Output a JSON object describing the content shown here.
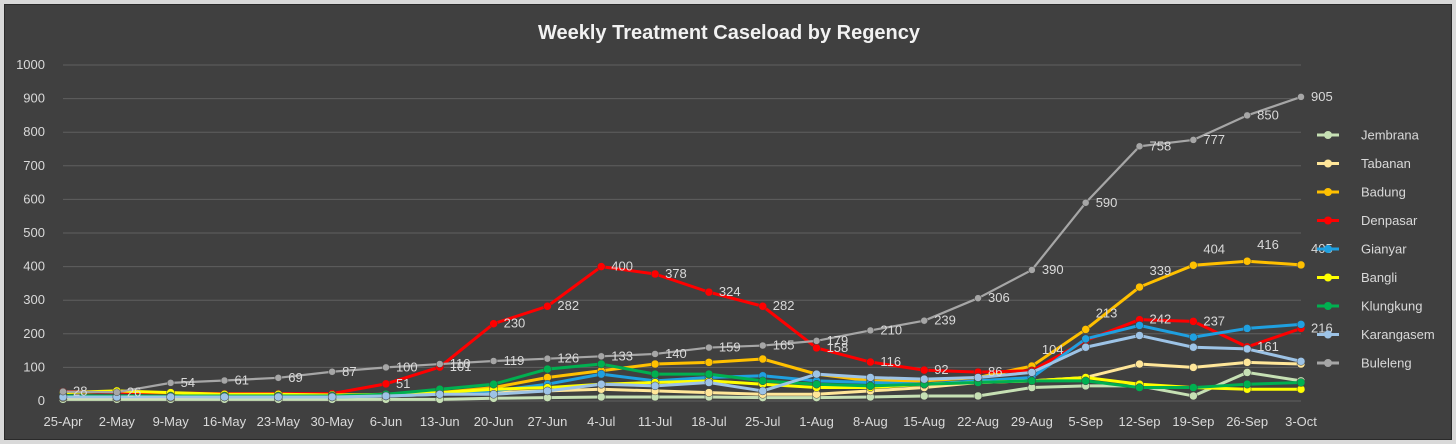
{
  "chart_data": {
    "type": "line",
    "title": "Weekly Treatment Caseload by Regency",
    "xlabel": "",
    "ylabel": "",
    "ylim": [
      0,
      1000
    ],
    "yticks": [
      0,
      100,
      200,
      300,
      400,
      500,
      600,
      700,
      800,
      900,
      1000
    ],
    "grid": "horizontal",
    "legend": "right",
    "categories": [
      "25-Apr",
      "2-May",
      "9-May",
      "16-May",
      "23-May",
      "30-May",
      "6-Jun",
      "13-Jun",
      "20-Jun",
      "27-Jun",
      "4-Jul",
      "11-Jul",
      "18-Jul",
      "25-Jul",
      "1-Aug",
      "8-Aug",
      "15-Aug",
      "22-Aug",
      "29-Aug",
      "5-Sep",
      "12-Sep",
      "19-Sep",
      "26-Sep",
      "3-Oct"
    ],
    "series": [
      {
        "name": "Jembrana",
        "color": "#c6e0b4",
        "labeled": false,
        "values": [
          5,
          5,
          5,
          5,
          5,
          5,
          5,
          5,
          8,
          10,
          12,
          12,
          12,
          10,
          10,
          12,
          15,
          15,
          40,
          45,
          45,
          15,
          85,
          60
        ]
      },
      {
        "name": "Tabanan",
        "color": "#ffe699",
        "labeled": false,
        "values": [
          10,
          10,
          10,
          12,
          12,
          12,
          15,
          20,
          25,
          30,
          35,
          30,
          25,
          20,
          20,
          30,
          40,
          55,
          60,
          70,
          110,
          100,
          115,
          110
        ]
      },
      {
        "name": "Badung",
        "color": "#ffc000",
        "labeled": true,
        "values": [
          15,
          15,
          15,
          15,
          15,
          15,
          20,
          25,
          40,
          70,
          90,
          110,
          115,
          125,
          80,
          60,
          60,
          70,
          104,
          213,
          339,
          404,
          416,
          405
        ],
        "labels": [
          null,
          null,
          null,
          null,
          null,
          null,
          null,
          null,
          null,
          null,
          null,
          null,
          null,
          null,
          null,
          null,
          null,
          null,
          "104",
          "213",
          "339",
          "404",
          "416",
          "405"
        ]
      },
      {
        "name": "Denpasar",
        "color": "#ff0000",
        "labeled": true,
        "values": [
          28,
          26,
          24,
          22,
          22,
          22,
          51,
          101,
          230,
          282,
          400,
          378,
          324,
          282,
          158,
          116,
          92,
          86,
          90,
          180,
          242,
          237,
          161,
          216
        ],
        "labels": [
          "28",
          "26",
          null,
          null,
          null,
          null,
          "51",
          "101",
          "230",
          "282",
          "400",
          "378",
          "324",
          "282",
          "158",
          "116",
          "92",
          "86",
          null,
          null,
          "242",
          "237",
          "161",
          "216"
        ]
      },
      {
        "name": "Gianyar",
        "color": "#1fa0e0",
        "labeled": false,
        "values": [
          12,
          12,
          12,
          12,
          12,
          12,
          15,
          20,
          30,
          50,
          80,
          60,
          70,
          75,
          60,
          55,
          50,
          60,
          70,
          185,
          225,
          190,
          216,
          228
        ]
      },
      {
        "name": "Bangli",
        "color": "#ffff00",
        "labeled": false,
        "values": [
          25,
          30,
          25,
          20,
          20,
          18,
          20,
          25,
          35,
          40,
          50,
          55,
          60,
          50,
          40,
          40,
          50,
          55,
          60,
          70,
          50,
          40,
          35,
          35
        ]
      },
      {
        "name": "Klungkung",
        "color": "#00b050",
        "labeled": false,
        "values": [
          15,
          15,
          15,
          15,
          15,
          15,
          20,
          35,
          50,
          95,
          110,
          80,
          80,
          60,
          50,
          45,
          50,
          55,
          60,
          60,
          40,
          40,
          50,
          55
        ]
      },
      {
        "name": "Karangasem",
        "color": "#9dc3e6",
        "labeled": false,
        "values": [
          12,
          12,
          12,
          12,
          12,
          12,
          15,
          20,
          20,
          30,
          50,
          45,
          55,
          30,
          80,
          70,
          65,
          70,
          85,
          160,
          195,
          160,
          155,
          118
        ]
      },
      {
        "name": "Buleleng",
        "color": "#a6a6a6",
        "labeled": true,
        "values": [
          28,
          26,
          54,
          61,
          69,
          87,
          100,
          110,
          119,
          126,
          133,
          140,
          159,
          165,
          179,
          210,
          239,
          306,
          390,
          590,
          758,
          777,
          850,
          905
        ],
        "labels": [
          null,
          null,
          "54",
          "61",
          "69",
          "87",
          "100",
          "110",
          "119",
          "126",
          "133",
          "140",
          "159",
          "165",
          "179",
          "210",
          "239",
          "306",
          "390",
          "590",
          "758",
          "777",
          "850",
          "905"
        ]
      }
    ]
  }
}
